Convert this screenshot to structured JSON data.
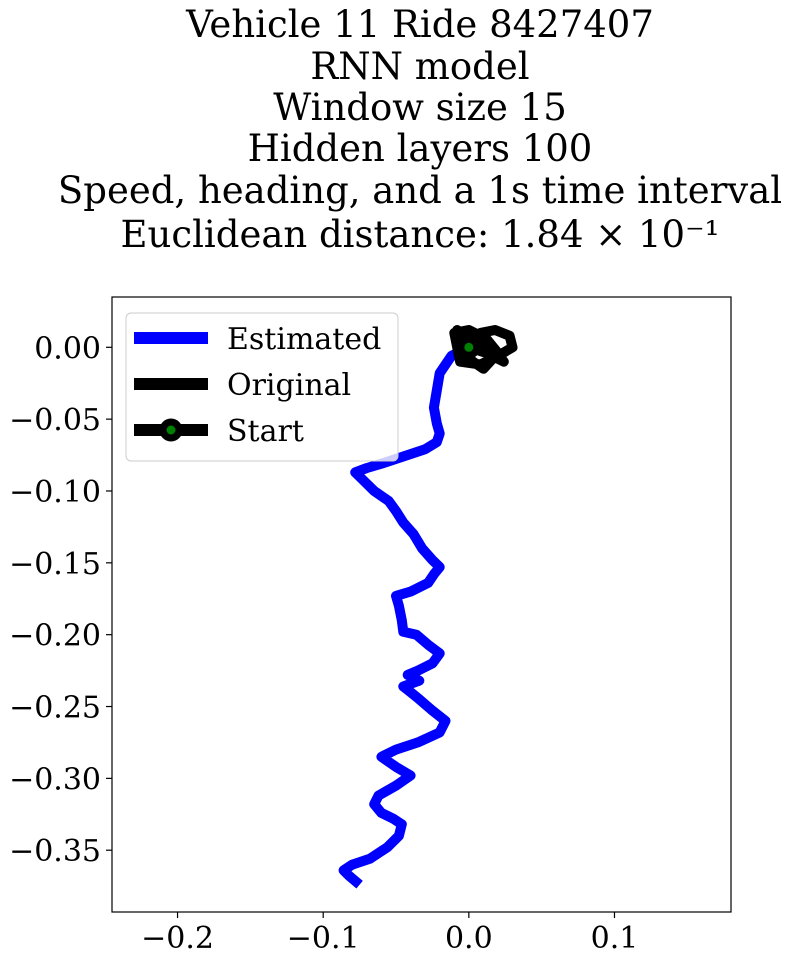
{
  "chart_data": {
    "type": "line",
    "title_lines": [
      "Vehicle 11 Ride 8427407",
      "RNN model",
      "Window size 15",
      "Hidden layers 100",
      "Speed, heading, and a 1s time interval",
      "Euclidean distance: 1.84 × 10⁻¹"
    ],
    "xlabel": "",
    "ylabel": "",
    "xlim": [
      -0.245,
      0.18
    ],
    "ylim": [
      -0.393,
      0.035
    ],
    "x_ticks": [
      {
        "value": -0.2,
        "label": "−0.2"
      },
      {
        "value": -0.1,
        "label": "−0.1"
      },
      {
        "value": 0.0,
        "label": "0.0"
      },
      {
        "value": 0.1,
        "label": "0.1"
      }
    ],
    "y_ticks": [
      {
        "value": 0.0,
        "label": "0.00"
      },
      {
        "value": -0.05,
        "label": "−0.05"
      },
      {
        "value": -0.1,
        "label": "−0.10"
      },
      {
        "value": -0.15,
        "label": "−0.15"
      },
      {
        "value": -0.2,
        "label": "−0.20"
      },
      {
        "value": -0.25,
        "label": "−0.25"
      },
      {
        "value": -0.3,
        "label": "−0.30"
      },
      {
        "value": -0.35,
        "label": "−0.35"
      }
    ],
    "grid": false,
    "legend_position": "top-left",
    "series": [
      {
        "name": "Estimated",
        "color": "#0000ff",
        "points": [
          [
            0.0,
            0.0
          ],
          [
            -0.012,
            -0.006
          ],
          [
            -0.02,
            -0.018
          ],
          [
            -0.022,
            -0.03
          ],
          [
            -0.024,
            -0.042
          ],
          [
            -0.022,
            -0.053
          ],
          [
            -0.02,
            -0.06
          ],
          [
            -0.022,
            -0.066
          ],
          [
            -0.03,
            -0.071
          ],
          [
            -0.045,
            -0.076
          ],
          [
            -0.06,
            -0.081
          ],
          [
            -0.07,
            -0.084
          ],
          [
            -0.078,
            -0.087
          ],
          [
            -0.073,
            -0.092
          ],
          [
            -0.065,
            -0.1
          ],
          [
            -0.055,
            -0.107
          ],
          [
            -0.05,
            -0.114
          ],
          [
            -0.045,
            -0.122
          ],
          [
            -0.038,
            -0.13
          ],
          [
            -0.032,
            -0.14
          ],
          [
            -0.025,
            -0.148
          ],
          [
            -0.02,
            -0.153
          ],
          [
            -0.024,
            -0.158
          ],
          [
            -0.028,
            -0.164
          ],
          [
            -0.04,
            -0.17
          ],
          [
            -0.05,
            -0.173
          ],
          [
            -0.048,
            -0.18
          ],
          [
            -0.046,
            -0.19
          ],
          [
            -0.045,
            -0.198
          ],
          [
            -0.036,
            -0.2
          ],
          [
            -0.028,
            -0.207
          ],
          [
            -0.02,
            -0.213
          ],
          [
            -0.025,
            -0.22
          ],
          [
            -0.035,
            -0.225
          ],
          [
            -0.042,
            -0.228
          ],
          [
            -0.034,
            -0.232
          ],
          [
            -0.045,
            -0.236
          ],
          [
            -0.04,
            -0.24
          ],
          [
            -0.034,
            -0.245
          ],
          [
            -0.026,
            -0.252
          ],
          [
            -0.016,
            -0.26
          ],
          [
            -0.02,
            -0.268
          ],
          [
            -0.035,
            -0.275
          ],
          [
            -0.05,
            -0.28
          ],
          [
            -0.06,
            -0.285
          ],
          [
            -0.05,
            -0.292
          ],
          [
            -0.04,
            -0.298
          ],
          [
            -0.05,
            -0.305
          ],
          [
            -0.062,
            -0.312
          ],
          [
            -0.065,
            -0.318
          ],
          [
            -0.06,
            -0.324
          ],
          [
            -0.052,
            -0.328
          ],
          [
            -0.046,
            -0.332
          ],
          [
            -0.048,
            -0.34
          ],
          [
            -0.056,
            -0.348
          ],
          [
            -0.068,
            -0.356
          ],
          [
            -0.08,
            -0.36
          ],
          [
            -0.086,
            -0.364
          ],
          [
            -0.082,
            -0.368
          ],
          [
            -0.075,
            -0.374
          ]
        ]
      },
      {
        "name": "Original",
        "color": "#000000",
        "points": [
          [
            0.0,
            0.0
          ],
          [
            0.008,
            0.01
          ],
          [
            0.018,
            0.012
          ],
          [
            0.028,
            0.008
          ],
          [
            0.03,
            0.0
          ],
          [
            0.02,
            -0.006
          ],
          [
            0.008,
            -0.012
          ],
          [
            -0.006,
            -0.01
          ],
          [
            -0.008,
            0.0
          ],
          [
            -0.01,
            0.01
          ],
          [
            0.0,
            0.012
          ],
          [
            0.012,
            0.006
          ],
          [
            0.02,
            -0.004
          ],
          [
            0.01,
            -0.015
          ],
          [
            0.0,
            -0.008
          ],
          [
            -0.008,
            0.012
          ],
          [
            0.004,
            0.004
          ],
          [
            0.016,
            0.0
          ],
          [
            0.024,
            -0.01
          ],
          [
            0.012,
            -0.004
          ],
          [
            0.0,
            0.0
          ]
        ]
      }
    ],
    "start_point": {
      "name": "Start",
      "x": 0.0,
      "y": 0.0,
      "color": "#008000",
      "edge_color": "#000000"
    },
    "legend": [
      {
        "label": "Estimated",
        "color": "#0000ff"
      },
      {
        "label": "Original",
        "color": "#000000"
      },
      {
        "label": "Start",
        "color": "#000000",
        "marker_color": "#008000"
      }
    ]
  }
}
